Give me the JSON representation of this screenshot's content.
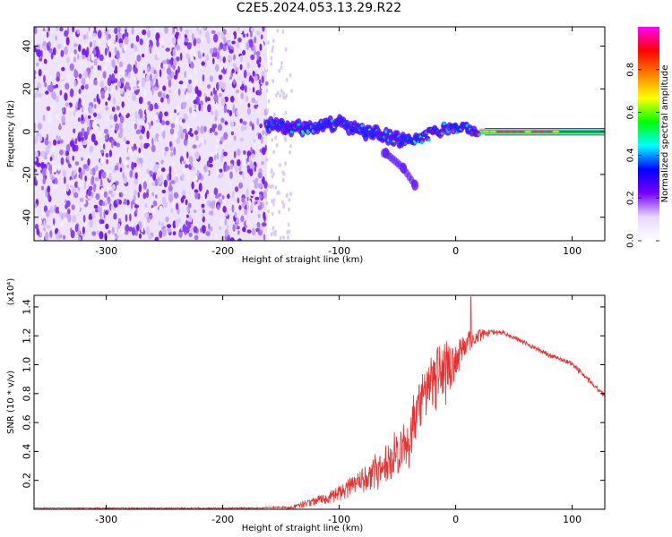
{
  "title": "C2E5.2024.053.13.29.R22",
  "chart_data": [
    {
      "type": "heatmap",
      "title": "",
      "xlabel": "Height of straight line (km)",
      "ylabel": "Frequency (Hz)",
      "xlim": [
        -362,
        128
      ],
      "ylim": [
        -51,
        49
      ],
      "xticks": [
        -300,
        -200,
        -100,
        0,
        100
      ],
      "yticks": [
        -40,
        -20,
        0,
        20,
        40
      ],
      "colorbar": {
        "label": "Normalized spectral amplitude",
        "range": [
          0,
          1
        ],
        "ticks": [
          0.0,
          0.2,
          0.4,
          0.6,
          0.8
        ],
        "colormap": [
          "#ffffff",
          "#e8d8ff",
          "#7a00ff",
          "#0000ff",
          "#00ffff",
          "#00ff00",
          "#ffff00",
          "#ff7f00",
          "#ff0000",
          "#ff00ff"
        ]
      },
      "noise_region_x": [
        -362,
        -162
      ],
      "signal_trace": [
        {
          "x": -160,
          "y": 3
        },
        {
          "x": -140,
          "y": 2
        },
        {
          "x": -120,
          "y": 2
        },
        {
          "x": -100,
          "y": 4
        },
        {
          "x": -80,
          "y": 0
        },
        {
          "x": -60,
          "y": -2
        },
        {
          "x": -40,
          "y": -5
        },
        {
          "x": -30,
          "y": -3
        },
        {
          "x": -20,
          "y": 0
        },
        {
          "x": 0,
          "y": 2
        },
        {
          "x": 20,
          "y": 0
        },
        {
          "x": 60,
          "y": 0
        },
        {
          "x": 90,
          "y": 0
        },
        {
          "x": 128,
          "y": 0
        }
      ],
      "branch_trace": [
        {
          "x": -60,
          "y": -10
        },
        {
          "x": -45,
          "y": -17
        },
        {
          "x": -35,
          "y": -25
        }
      ]
    },
    {
      "type": "line",
      "title": "",
      "xlabel": "Height of straight line (km)",
      "ylabel": "SNR (10 * v/v)",
      "multiplier": "(x10⁴)",
      "xlim": [
        -362,
        128
      ],
      "ylim": [
        0,
        1.48
      ],
      "xticks": [
        -300,
        -200,
        -100,
        0,
        100
      ],
      "yticks": [
        0.2,
        0.4,
        0.6,
        0.8,
        1.0,
        1.2,
        1.4
      ],
      "series": [
        {
          "color": "#e8302f",
          "envelope": [
            {
              "x": -362,
              "y": 0.01
            },
            {
              "x": -180,
              "y": 0.01
            },
            {
              "x": -140,
              "y": 0.02
            },
            {
              "x": -120,
              "y": 0.08
            },
            {
              "x": -100,
              "y": 0.15
            },
            {
              "x": -80,
              "y": 0.25
            },
            {
              "x": -60,
              "y": 0.4
            },
            {
              "x": -40,
              "y": 0.6
            },
            {
              "x": -30,
              "y": 0.85
            },
            {
              "x": -20,
              "y": 1.05
            },
            {
              "x": 0,
              "y": 1.12
            },
            {
              "x": 10,
              "y": 1.2
            },
            {
              "x": 20,
              "y": 1.24
            },
            {
              "x": 40,
              "y": 1.24
            },
            {
              "x": 60,
              "y": 1.16
            },
            {
              "x": 80,
              "y": 1.08
            },
            {
              "x": 100,
              "y": 1.02
            },
            {
              "x": 115,
              "y": 0.9
            },
            {
              "x": 128,
              "y": 0.8
            }
          ],
          "noise_amplitude": [
            {
              "x": -362,
              "y": 0.005
            },
            {
              "x": -150,
              "y": 0.01
            },
            {
              "x": -120,
              "y": 0.06
            },
            {
              "x": -80,
              "y": 0.15
            },
            {
              "x": -40,
              "y": 0.35
            },
            {
              "x": -10,
              "y": 0.4
            },
            {
              "x": 10,
              "y": 0.12
            },
            {
              "x": 30,
              "y": 0.03
            },
            {
              "x": 128,
              "y": 0.03
            }
          ],
          "peak": {
            "x": 13,
            "y": 1.47
          }
        }
      ]
    }
  ]
}
